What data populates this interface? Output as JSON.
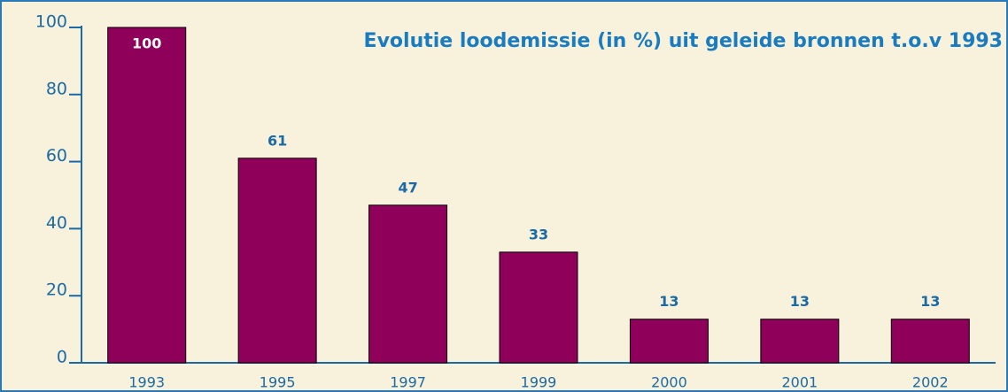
{
  "chart_data": {
    "type": "bar",
    "title": "Evolutie loodemissie (in %) uit geleide bronnen t.o.v 1993",
    "categories": [
      "1993",
      "1995",
      "1997",
      "1999",
      "2000",
      "2001",
      "2002"
    ],
    "values": [
      100,
      61,
      47,
      33,
      13,
      13,
      13
    ],
    "color": "#8e005a",
    "ylim": [
      0,
      100
    ],
    "yticks": [
      0,
      20,
      40,
      60,
      80,
      100
    ],
    "grid": false
  }
}
